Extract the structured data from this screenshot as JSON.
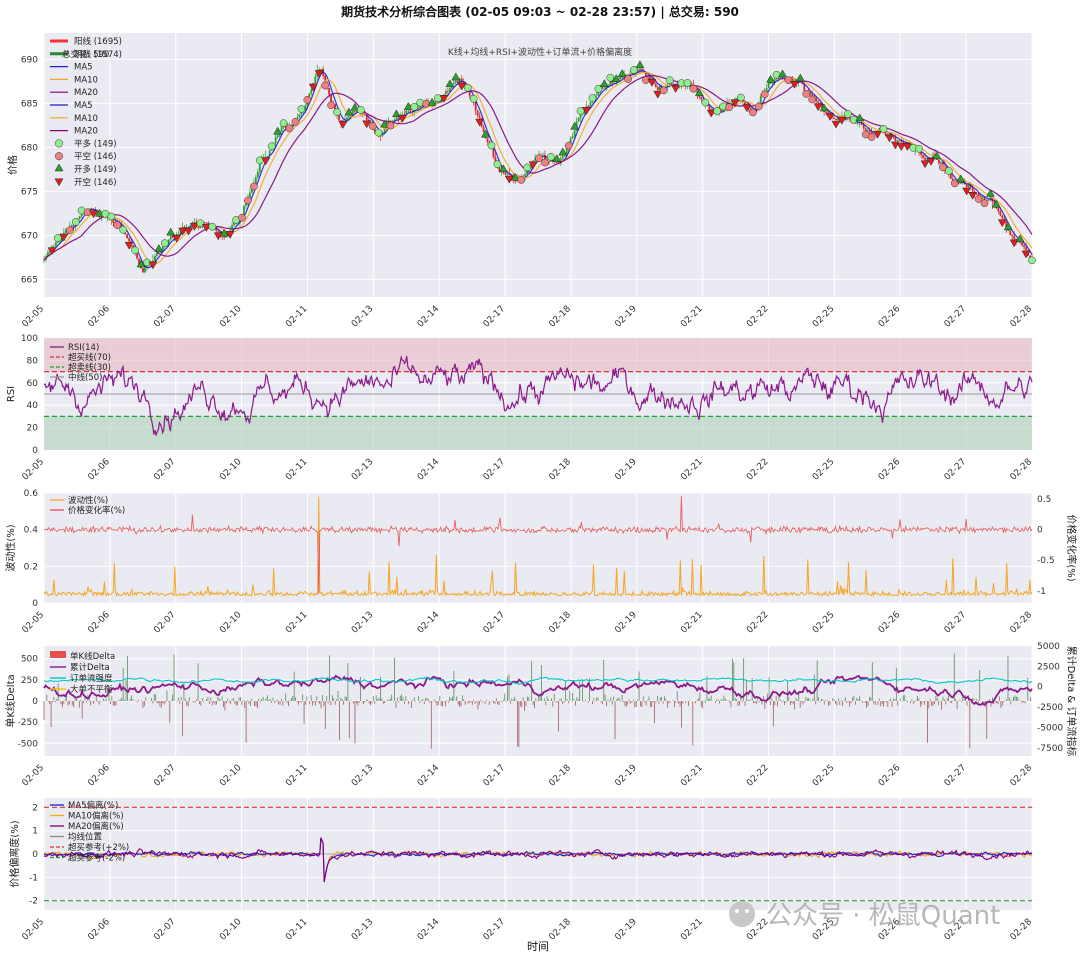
{
  "figure": {
    "title": "期货技术分析综合图表 (02-05 09:03 ~ 02-28 23:57) | 总交易: 590",
    "xlabel": "时间",
    "watermark": "公众号 · 松鼠Quant",
    "date_ticks": [
      "02-05",
      "02-06",
      "02-07",
      "02-10",
      "02-11",
      "02-13",
      "02-14",
      "02-17",
      "02-18",
      "02-19",
      "02-21",
      "02-22",
      "02-25",
      "02-26",
      "02-27",
      "02-28"
    ]
  },
  "colors": {
    "panel_bg": "#eaeaf2",
    "up": "#2ca02c",
    "down": "#d62728",
    "ma5": "#1f1fd0",
    "ma10": "#f5a623",
    "ma20": "#800080",
    "rsi": "#8b1a8b",
    "volatility": "#f5a623",
    "price_change": "#e34a4a",
    "cum_delta": "#8b1a8b",
    "order_flow": "#00c8c8"
  },
  "chart_data": [
    {
      "type": "line",
      "panel": "price",
      "subtitle": "K线+均线+RSI+波动性+订单流+价格偏离度",
      "ylabel": "价格",
      "ylim": [
        663,
        693
      ],
      "yticks": [
        665,
        670,
        675,
        680,
        685,
        690
      ],
      "legend": [
        "阳线 (1695)",
        "阴线 (1574)",
        "MA5",
        "MA10",
        "MA20",
        "MA5",
        "MA10",
        "MA20",
        "平多 (149)",
        "平空 (146)",
        "开多 (149)",
        "开空 (146)"
      ],
      "legend_overlay": "总交易: 590",
      "legend_position": "top-left",
      "x": [
        0,
        2,
        4,
        6,
        8,
        10,
        12,
        14,
        16,
        18,
        20,
        22,
        24,
        26,
        28,
        30,
        32,
        34,
        36,
        38,
        40,
        42,
        44,
        46,
        48,
        50,
        52,
        54,
        56,
        58,
        60,
        62,
        64,
        66,
        68,
        70,
        72,
        74,
        76,
        78,
        80,
        82,
        84,
        86,
        88,
        90,
        92,
        94,
        96,
        98,
        100
      ],
      "close": [
        667,
        670,
        673,
        672,
        671,
        666,
        668,
        671,
        671,
        670,
        673,
        678,
        682,
        684,
        689,
        682,
        684,
        681,
        684,
        685,
        686,
        688,
        684,
        677,
        676,
        679,
        678,
        683,
        686,
        688,
        689,
        687,
        688,
        686,
        684,
        685,
        684,
        688,
        688,
        686,
        683,
        683,
        682,
        681,
        680,
        679,
        676,
        675,
        674,
        670,
        667
      ]
    },
    {
      "type": "line",
      "panel": "rsi",
      "ylabel": "RSI",
      "ylim": [
        0,
        100
      ],
      "yticks": [
        0,
        20,
        40,
        60,
        80,
        100
      ],
      "overbought": 70,
      "oversold": 30,
      "mid": 50,
      "legend": [
        "RSI(14)",
        "超买线(70)",
        "超卖线(30)",
        "中线(50)"
      ],
      "legend_position": "top-left"
    },
    {
      "type": "line",
      "panel": "volatility",
      "ylabel": "波动性(%)",
      "ylabel_right": "价格变化率(%)",
      "ylim": [
        0,
        0.6
      ],
      "yticks": [
        0.0,
        0.2,
        0.4,
        0.6
      ],
      "ylim_right": [
        -1.2,
        0.6
      ],
      "yticks_right": [
        -1.0,
        -0.5,
        0.0,
        0.5
      ],
      "legend": [
        "波动性(%)",
        "价格变化率(%)"
      ],
      "legend_position": "top-left"
    },
    {
      "type": "bar",
      "panel": "delta",
      "ylabel": "单K线Delta",
      "ylabel_right": "累计Delta & 订单流指标",
      "ylim": [
        -650,
        650
      ],
      "yticks": [
        -500,
        -250,
        0,
        250,
        500
      ],
      "ylim_right": [
        -8500,
        5000
      ],
      "yticks_right": [
        -7500,
        -5000,
        -2500,
        0,
        2500,
        5000
      ],
      "legend": [
        "单K线Delta",
        "累计Delta",
        "订单流强度",
        "大单不平衡"
      ],
      "legend_position": "top-left"
    },
    {
      "type": "line",
      "panel": "deviation",
      "ylabel": "价格偏离度(%)",
      "ylim": [
        -2.4,
        2.4
      ],
      "yticks": [
        -2,
        -1,
        0,
        1,
        2
      ],
      "upper_ref": 2,
      "lower_ref": -2,
      "legend": [
        "MA5偏离(%)",
        "MA10偏离(%)",
        "MA20偏离(%)",
        "均线位置",
        "超买参考(+2%)",
        "超卖参考(-2%)"
      ],
      "legend_position": "top-left"
    }
  ]
}
